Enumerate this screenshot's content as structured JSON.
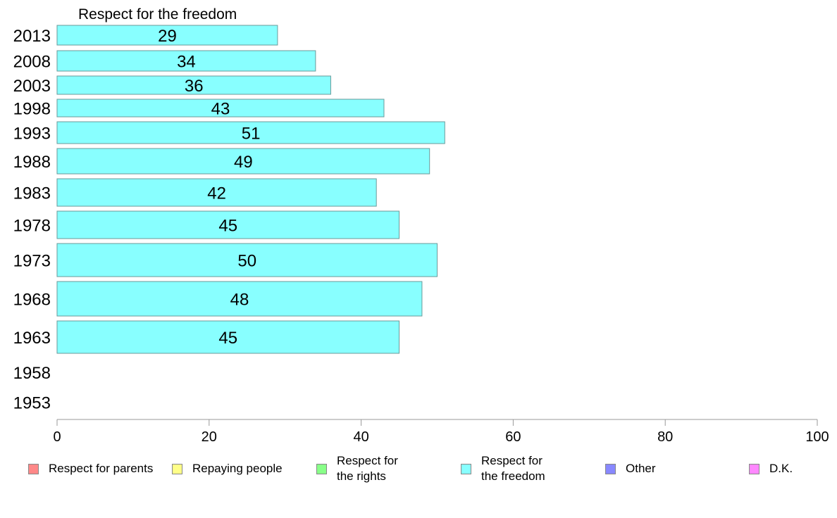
{
  "chart_data": {
    "type": "bar",
    "orientation": "horizontal",
    "title": "Respect for the freedom",
    "categories": [
      "2013",
      "2008",
      "2003",
      "1998",
      "1993",
      "1988",
      "1983",
      "1978",
      "1973",
      "1968",
      "1963",
      "1958",
      "1953"
    ],
    "series": [
      {
        "name": "Respect for the freedom",
        "color": "#88ffff",
        "values": [
          29,
          34,
          36,
          43,
          51,
          49,
          42,
          45,
          50,
          48,
          45,
          null,
          null
        ]
      }
    ],
    "xlim": [
      0,
      100
    ],
    "xticks": [
      "0",
      "20",
      "40",
      "60",
      "80",
      "100"
    ],
    "grid": false,
    "legend": {
      "placement": "bottom",
      "items": [
        {
          "label": "Respect for parents",
          "color": "#ff8888"
        },
        {
          "label": "Repaying people",
          "color": "#ffff88"
        },
        {
          "label": "Respect for\nthe rights",
          "color": "#88ff88"
        },
        {
          "label": "Respect for\nthe freedom",
          "color": "#88ffff"
        },
        {
          "label": "Other",
          "color": "#8888ff"
        },
        {
          "label": "D.K.",
          "color": "#ff88ff"
        }
      ]
    }
  }
}
